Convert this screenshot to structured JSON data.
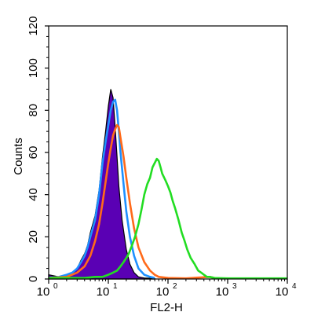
{
  "chart_data": {
    "type": "line",
    "xlabel": "FL2-H",
    "ylabel": "Counts",
    "x_scale": "log",
    "xlim": [
      1,
      10000
    ],
    "ylim": [
      0,
      120
    ],
    "x_ticks": [
      {
        "base": "10",
        "exp": "0"
      },
      {
        "base": "10",
        "exp": "1"
      },
      {
        "base": "10",
        "exp": "2"
      },
      {
        "base": "10",
        "exp": "3"
      },
      {
        "base": "10",
        "exp": "4"
      }
    ],
    "y_ticks": [
      "0",
      "20",
      "40",
      "60",
      "80",
      "100",
      "120"
    ],
    "grid": false,
    "series": [
      {
        "color": "#5a00b4",
        "filled": true,
        "points": [
          [
            1,
            2
          ],
          [
            1.5,
            1
          ],
          [
            2,
            2
          ],
          [
            2.5,
            3
          ],
          [
            3,
            5
          ],
          [
            3.5,
            9
          ],
          [
            4,
            12
          ],
          [
            4.5,
            16
          ],
          [
            5,
            22
          ],
          [
            6,
            30
          ],
          [
            7,
            42
          ],
          [
            8,
            58
          ],
          [
            9,
            70
          ],
          [
            10,
            82
          ],
          [
            11,
            90
          ],
          [
            12,
            86
          ],
          [
            13,
            72
          ],
          [
            14,
            58
          ],
          [
            15,
            44
          ],
          [
            17,
            28
          ],
          [
            20,
            14
          ],
          [
            23,
            7
          ],
          [
            27,
            3
          ],
          [
            32,
            1
          ],
          [
            40,
            0.5
          ],
          [
            60,
            0.2
          ]
        ]
      },
      {
        "color": "#1e90ff",
        "filled": false,
        "points": [
          [
            1,
            0.5
          ],
          [
            1.5,
            1
          ],
          [
            2,
            2
          ],
          [
            2.5,
            3
          ],
          [
            3,
            5
          ],
          [
            3.5,
            8
          ],
          [
            4,
            11
          ],
          [
            4.5,
            15
          ],
          [
            5,
            20
          ],
          [
            6,
            28
          ],
          [
            7,
            40
          ],
          [
            8,
            55
          ],
          [
            9,
            65
          ],
          [
            10,
            73
          ],
          [
            11,
            80
          ],
          [
            12,
            84
          ],
          [
            13,
            85
          ],
          [
            14,
            80
          ],
          [
            15,
            70
          ],
          [
            16,
            60
          ],
          [
            18,
            45
          ],
          [
            20,
            32
          ],
          [
            23,
            20
          ],
          [
            27,
            11
          ],
          [
            32,
            5
          ],
          [
            40,
            2
          ],
          [
            50,
            1
          ],
          [
            60,
            0.5
          ]
        ]
      },
      {
        "color": "#ff6a1a",
        "filled": false,
        "points": [
          [
            1,
            0.5
          ],
          [
            2,
            1
          ],
          [
            3,
            3
          ],
          [
            4,
            6
          ],
          [
            5,
            11
          ],
          [
            6,
            18
          ],
          [
            7,
            26
          ],
          [
            8,
            36
          ],
          [
            9,
            46
          ],
          [
            10,
            55
          ],
          [
            11,
            62
          ],
          [
            12,
            68
          ],
          [
            13,
            71
          ],
          [
            14,
            73
          ],
          [
            15,
            72
          ],
          [
            16,
            67
          ],
          [
            18,
            58
          ],
          [
            20,
            48
          ],
          [
            23,
            36
          ],
          [
            27,
            24
          ],
          [
            32,
            15
          ],
          [
            40,
            8
          ],
          [
            50,
            4
          ],
          [
            60,
            2
          ],
          [
            70,
            1
          ],
          [
            100,
            0.5
          ],
          [
            200,
            0.3
          ],
          [
            500,
            1
          ],
          [
            600,
            0.5
          ]
        ]
      },
      {
        "color": "#22dd22",
        "filled": false,
        "points": [
          [
            1,
            0.5
          ],
          [
            2,
            0.5
          ],
          [
            4,
            0.5
          ],
          [
            6,
            1
          ],
          [
            8,
            1
          ],
          [
            10,
            2
          ],
          [
            12,
            3
          ],
          [
            14,
            4
          ],
          [
            16,
            6
          ],
          [
            18,
            8
          ],
          [
            20,
            10
          ],
          [
            22,
            12
          ],
          [
            25,
            16
          ],
          [
            28,
            20
          ],
          [
            32,
            26
          ],
          [
            36,
            33
          ],
          [
            40,
            40
          ],
          [
            45,
            45
          ],
          [
            50,
            48
          ],
          [
            55,
            53
          ],
          [
            60,
            55
          ],
          [
            65,
            57
          ],
          [
            70,
            56
          ],
          [
            75,
            53
          ],
          [
            80,
            50
          ],
          [
            90,
            47
          ],
          [
            100,
            44
          ],
          [
            110,
            41
          ],
          [
            120,
            37
          ],
          [
            130,
            34
          ],
          [
            150,
            28
          ],
          [
            170,
            22
          ],
          [
            190,
            18
          ],
          [
            210,
            14
          ],
          [
            240,
            10
          ],
          [
            280,
            7
          ],
          [
            320,
            4
          ],
          [
            360,
            3
          ],
          [
            400,
            2
          ],
          [
            450,
            1
          ],
          [
            500,
            1
          ],
          [
            600,
            0.5
          ],
          [
            1000,
            0.3
          ],
          [
            10000,
            0.3
          ]
        ]
      }
    ]
  }
}
